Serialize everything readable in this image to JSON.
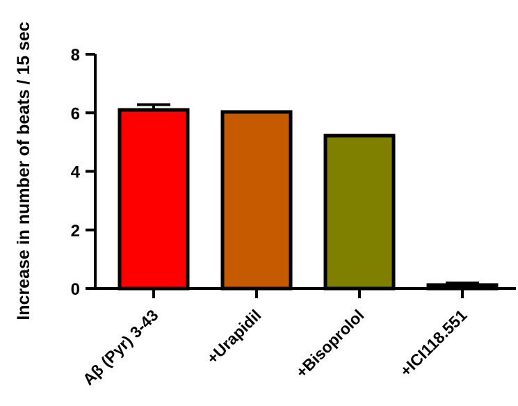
{
  "chart_data": {
    "type": "bar",
    "title": "",
    "xlabel": "",
    "ylabel": "Increase in number of beats / 15 sec",
    "categories": [
      "Aβ (Pyr) 3-43",
      "+Urapidil",
      "+Bisoprolol",
      "+ICI118.551"
    ],
    "values": [
      6.1,
      6.03,
      5.22,
      0.12
    ],
    "error": [
      0.18,
      0,
      0,
      0.07
    ],
    "colors": [
      "#ff0000",
      "#c55a00",
      "#7f7f00",
      "#000000"
    ],
    "yticks": [
      0,
      2,
      4,
      6,
      8
    ],
    "ylim": [
      0,
      8
    ],
    "grid": false,
    "legend": "none"
  }
}
